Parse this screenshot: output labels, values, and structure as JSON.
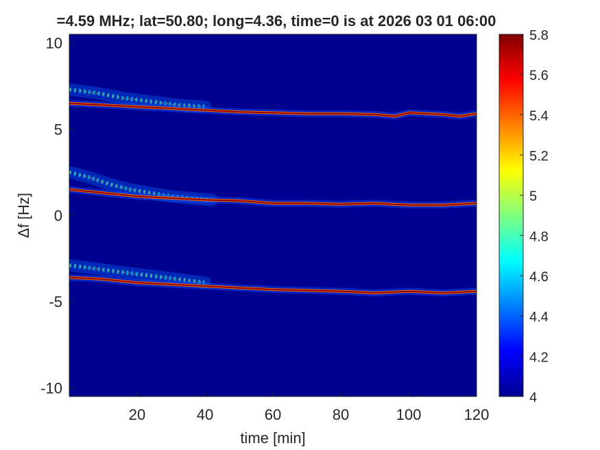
{
  "chart_data": {
    "type": "heatmap",
    "title": "=4.59 MHz;  lat=50.80; long=4.36, time=0 is at 2026 03 01 06:00",
    "xlabel": "time [min]",
    "ylabel": "Δf [Hz]",
    "xlim": [
      0,
      120
    ],
    "ylim": [
      -10.5,
      10.5
    ],
    "xticks": [
      20,
      40,
      60,
      80,
      100,
      120
    ],
    "xtick_labels": [
      "20",
      "40",
      "60",
      "80",
      "100",
      "120"
    ],
    "yticks": [
      10,
      5,
      0,
      -5,
      -10
    ],
    "ytick_labels": [
      "10",
      "5",
      "0",
      "-5",
      "-10"
    ],
    "colorbar": {
      "colormap": "jet",
      "range": [
        4.0,
        5.8
      ],
      "ticks": [
        5.8,
        5.6,
        5.4,
        5.2,
        5.0,
        4.8,
        4.6,
        4.4,
        4.2,
        4.0
      ],
      "tick_labels": [
        "5.8",
        "5.6",
        "5.4",
        "5.2",
        "5",
        "4.8",
        "4.6",
        "4.4",
        "4.2",
        "4"
      ]
    },
    "grid": false,
    "series": [
      {
        "x": [
          0,
          10,
          20,
          30,
          40,
          50,
          60,
          70,
          80,
          90,
          96,
          100,
          110,
          115,
          120
        ],
        "y": [
          6.5,
          6.4,
          6.3,
          6.2,
          6.1,
          6.0,
          5.95,
          5.9,
          5.9,
          5.85,
          5.75,
          5.95,
          5.85,
          5.75,
          5.9
        ],
        "secondary_y": [
          7.3,
          7.1,
          6.8,
          6.6,
          6.4,
          6.3
        ],
        "secondary_x": [
          0,
          8,
          16,
          24,
          32,
          40
        ]
      },
      {
        "x": [
          0,
          10,
          20,
          30,
          40,
          50,
          60,
          70,
          80,
          90,
          100,
          110,
          120
        ],
        "y": [
          1.5,
          1.3,
          1.1,
          1.0,
          0.9,
          0.85,
          0.7,
          0.7,
          0.65,
          0.7,
          0.6,
          0.6,
          0.7
        ],
        "secondary_y": [
          2.5,
          2.2,
          1.8,
          1.5,
          1.3,
          1.1,
          1.0,
          0.9
        ],
        "secondary_x": [
          0,
          6,
          12,
          18,
          24,
          30,
          36,
          42
        ]
      },
      {
        "x": [
          0,
          10,
          20,
          30,
          40,
          50,
          60,
          70,
          80,
          90,
          100,
          110,
          120
        ],
        "y": [
          -3.6,
          -3.7,
          -3.9,
          -4.0,
          -4.1,
          -4.2,
          -4.3,
          -4.35,
          -4.4,
          -4.5,
          -4.4,
          -4.5,
          -4.4
        ],
        "secondary_y": [
          -2.9,
          -3.1,
          -3.3,
          -3.5,
          -3.7,
          -3.9
        ],
        "secondary_x": [
          0,
          8,
          16,
          24,
          32,
          40
        ]
      }
    ]
  }
}
